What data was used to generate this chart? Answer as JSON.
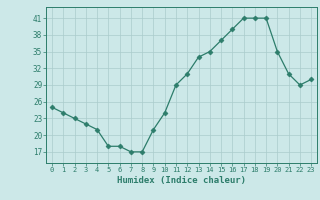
{
  "x": [
    0,
    1,
    2,
    3,
    4,
    5,
    6,
    7,
    8,
    9,
    10,
    11,
    12,
    13,
    14,
    15,
    16,
    17,
    18,
    19,
    20,
    21,
    22,
    23
  ],
  "y": [
    25,
    24,
    23,
    22,
    21,
    18,
    18,
    17,
    17,
    21,
    24,
    29,
    31,
    34,
    35,
    37,
    39,
    41,
    41,
    41,
    35,
    31,
    29,
    30
  ],
  "xlabel": "Humidex (Indice chaleur)",
  "ylim": [
    15,
    43
  ],
  "xlim": [
    -0.5,
    23.5
  ],
  "yticks": [
    17,
    20,
    23,
    26,
    29,
    32,
    35,
    38,
    41
  ],
  "xticks": [
    0,
    1,
    2,
    3,
    4,
    5,
    6,
    7,
    8,
    9,
    10,
    11,
    12,
    13,
    14,
    15,
    16,
    17,
    18,
    19,
    20,
    21,
    22,
    23
  ],
  "line_color": "#2d7d6b",
  "marker": "D",
  "marker_size": 2.5,
  "bg_color": "#cce8e8",
  "grid_color": "#aacccc",
  "axis_color": "#2d7d6b",
  "tick_color": "#2d7d6b",
  "label_color": "#2d7d6b"
}
